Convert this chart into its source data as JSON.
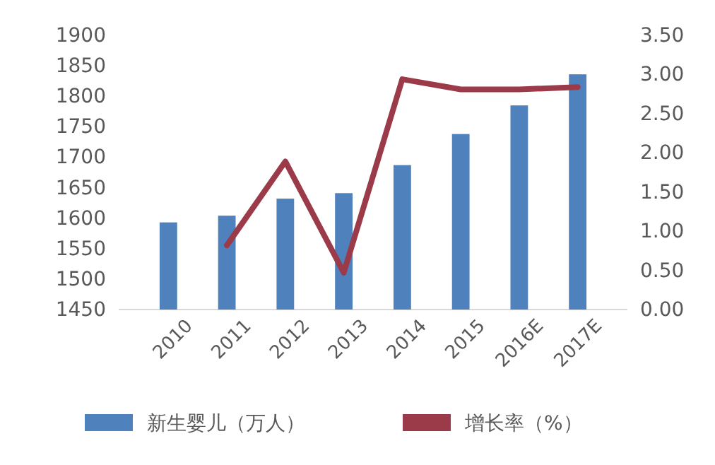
{
  "chart_data": {
    "type": "bar",
    "categories": [
      "2010",
      "2011",
      "2012",
      "2013",
      "2014",
      "2015",
      "2016E",
      "2017E"
    ],
    "series": [
      {
        "name": "新生婴儿（万人）",
        "color": "#4f81bd",
        "values": [
          1593,
          1604,
          1632,
          1641,
          1687,
          1738,
          1785,
          1836
        ]
      },
      {
        "name": "增长率（%）",
        "type": "line",
        "axis": "y2",
        "color": "#9b3a48",
        "values": [
          null,
          0.82,
          1.89,
          0.47,
          2.94,
          2.81,
          2.81,
          2.84
        ]
      }
    ],
    "ylim": [
      1450,
      1900
    ],
    "yticks": [
      1450,
      1500,
      1550,
      1600,
      1650,
      1700,
      1750,
      1800,
      1850,
      1900
    ],
    "y2lim": [
      0,
      3.5
    ],
    "y2ticks": [
      {
        "value": 0,
        "label": "0.00"
      },
      {
        "value": 0.5,
        "label": "0.50"
      },
      {
        "value": 1,
        "label": "1.00"
      },
      {
        "value": 1.5,
        "label": "1.50"
      },
      {
        "value": 2,
        "label": "2.00"
      },
      {
        "value": 2.5,
        "label": "2.50"
      },
      {
        "value": 3,
        "label": "3.00"
      },
      {
        "value": 3.5,
        "label": "3.50"
      }
    ],
    "legend": "bottom"
  }
}
